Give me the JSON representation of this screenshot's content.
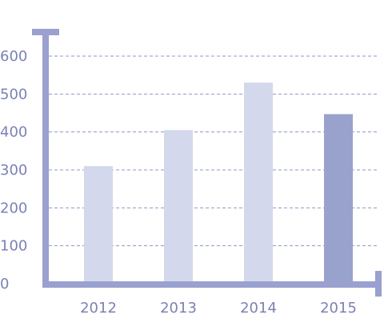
{
  "chart_data": {
    "type": "bar",
    "categories": [
      "2012",
      "2013",
      "2014",
      "2015"
    ],
    "values": [
      310,
      405,
      530,
      447
    ],
    "ylim": [
      0,
      600
    ],
    "yticks": [
      0,
      100,
      200,
      300,
      400,
      500,
      600
    ],
    "grid": true,
    "colors": {
      "bar": "#d3d8ec",
      "bar_highlight": "#98a2cd",
      "axis": "#9aa0cf",
      "text": "#7b82b5"
    },
    "highlight_index": 3
  }
}
